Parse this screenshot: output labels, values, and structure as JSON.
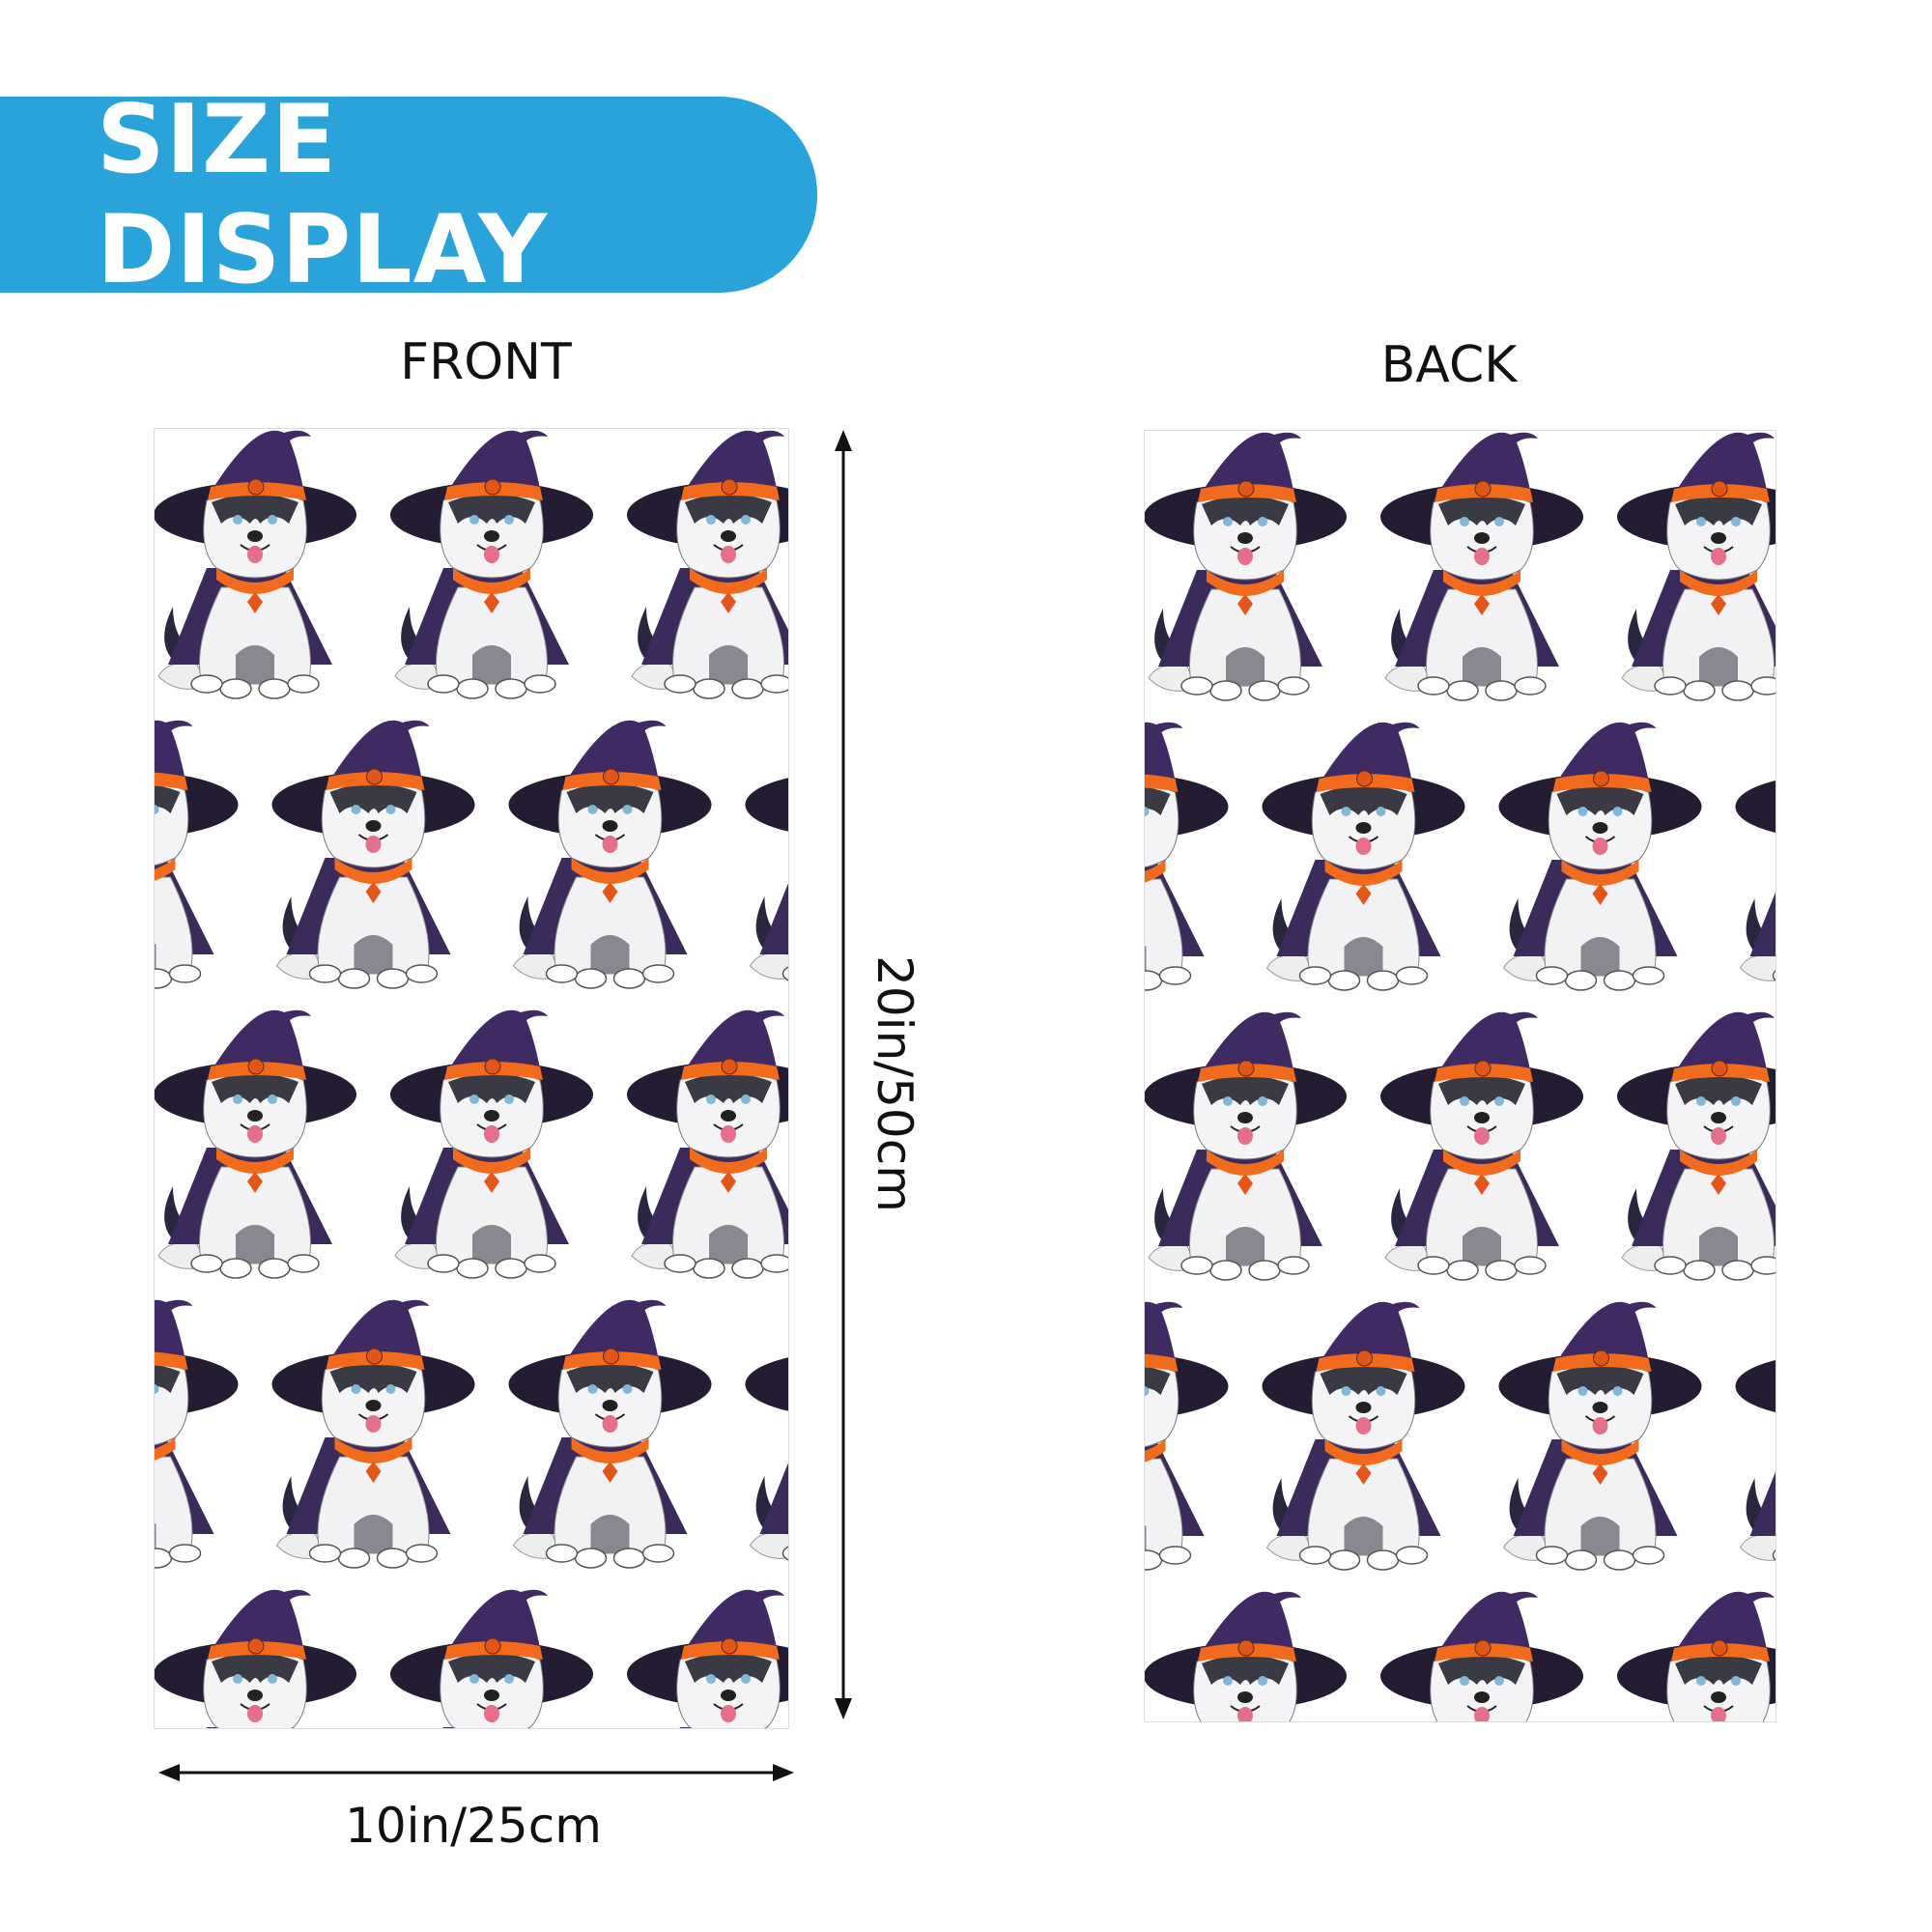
{
  "banner": {
    "title": "SIZE DISPLAY",
    "color": "#2aa3db"
  },
  "front": {
    "label": "FRONT"
  },
  "back": {
    "label": "BACK"
  },
  "dimensions": {
    "height": "20in/50cm",
    "width": "10in/25cm"
  },
  "pattern": {
    "motif": "husky-witch-hat-icon",
    "hat_color": "#3f2a63",
    "band_color": "#f26a1b"
  }
}
